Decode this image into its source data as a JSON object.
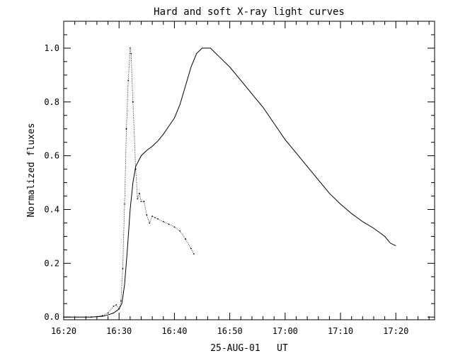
{
  "chart_data": {
    "type": "line",
    "title": "Hard and soft X-ray light curves",
    "xlabel": "25-AUG-01   UT",
    "ylabel": "Normalized fluxes",
    "x_unit": "UT time (HH:MM)",
    "xlim": [
      "16:20",
      "17:27"
    ],
    "ylim": [
      -0.01,
      1.1
    ],
    "x_ticks": [
      "16:20",
      "16:30",
      "16:40",
      "16:50",
      "17:00",
      "17:10",
      "17:20"
    ],
    "y_ticks": [
      "0.0",
      "0.2",
      "0.4",
      "0.6",
      "0.8",
      "1.0"
    ],
    "grid": false,
    "legend": "none",
    "series": [
      {
        "style": "solid-step",
        "points": [
          [
            "16:20",
            0.0
          ],
          [
            "16:25",
            0.0
          ],
          [
            "16:27",
            0.003
          ],
          [
            "16:28",
            0.008
          ],
          [
            "16:29",
            0.015
          ],
          [
            "16:30",
            0.03
          ],
          [
            "16:30:30",
            0.05
          ],
          [
            "16:31",
            0.12
          ],
          [
            "16:31:30",
            0.25
          ],
          [
            "16:32",
            0.4
          ],
          [
            "16:32:30",
            0.5
          ],
          [
            "16:33",
            0.56
          ],
          [
            "16:34",
            0.6
          ],
          [
            "16:35",
            0.62
          ],
          [
            "16:36",
            0.635
          ],
          [
            "16:37",
            0.655
          ],
          [
            "16:38",
            0.68
          ],
          [
            "16:39",
            0.71
          ],
          [
            "16:40",
            0.74
          ],
          [
            "16:41",
            0.79
          ],
          [
            "16:42",
            0.86
          ],
          [
            "16:43",
            0.93
          ],
          [
            "16:44",
            0.98
          ],
          [
            "16:45",
            1.0
          ],
          [
            "16:46:30",
            1.0
          ],
          [
            "16:48",
            0.97
          ],
          [
            "16:50",
            0.93
          ],
          [
            "16:52",
            0.88
          ],
          [
            "16:54",
            0.83
          ],
          [
            "16:56",
            0.78
          ],
          [
            "16:58",
            0.72
          ],
          [
            "17:00",
            0.66
          ],
          [
            "17:02",
            0.61
          ],
          [
            "17:04",
            0.56
          ],
          [
            "17:06",
            0.51
          ],
          [
            "17:08",
            0.46
          ],
          [
            "17:10",
            0.42
          ],
          [
            "17:12",
            0.385
          ],
          [
            "17:14",
            0.355
          ],
          [
            "17:16",
            0.33
          ],
          [
            "17:18",
            0.3
          ],
          [
            "17:19",
            0.275
          ],
          [
            "17:20",
            0.265
          ]
        ]
      },
      {
        "style": "dots",
        "points": [
          [
            "16:20",
            0.0
          ],
          [
            "16:25",
            0.0
          ],
          [
            "16:27",
            0.005
          ],
          [
            "16:28",
            0.015
          ],
          [
            "16:29",
            0.04
          ],
          [
            "16:29:30",
            0.045
          ],
          [
            "16:30",
            0.03
          ],
          [
            "16:30:20",
            0.06
          ],
          [
            "16:30:40",
            0.18
          ],
          [
            "16:31",
            0.42
          ],
          [
            "16:31:20",
            0.7
          ],
          [
            "16:31:40",
            0.88
          ],
          [
            "16:32",
            1.0
          ],
          [
            "16:32:10",
            0.98
          ],
          [
            "16:32:30",
            0.8
          ],
          [
            "16:33",
            0.55
          ],
          [
            "16:33:20",
            0.44
          ],
          [
            "16:33:40",
            0.46
          ],
          [
            "16:34",
            0.43
          ],
          [
            "16:34:30",
            0.43
          ],
          [
            "16:35",
            0.38
          ],
          [
            "16:35:30",
            0.35
          ],
          [
            "16:36",
            0.375
          ],
          [
            "16:36:30",
            0.37
          ],
          [
            "16:37",
            0.365
          ],
          [
            "16:38",
            0.355
          ],
          [
            "16:39",
            0.345
          ],
          [
            "16:40",
            0.335
          ],
          [
            "16:41",
            0.32
          ],
          [
            "16:42",
            0.29
          ],
          [
            "16:43",
            0.255
          ],
          [
            "16:43:30",
            0.235
          ]
        ]
      }
    ]
  }
}
